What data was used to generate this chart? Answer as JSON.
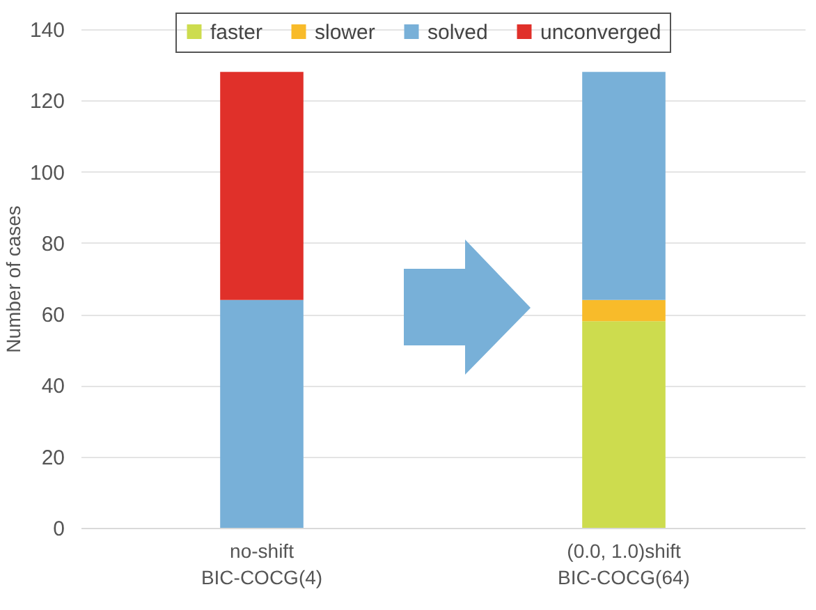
{
  "chart_data": {
    "type": "bar",
    "stacked": true,
    "ylabel": "Number of cases",
    "categories": [
      "no-shift\nBIC-COCG(4)",
      "(0.0, 1.0)shift\nBIC-COCG(64)"
    ],
    "series": [
      {
        "name": "faster",
        "color": "#cddc4e",
        "values": [
          null,
          58
        ]
      },
      {
        "name": "slower",
        "color": "#f8bb2a",
        "values": [
          null,
          6
        ]
      },
      {
        "name": "solved",
        "color": "#78b0d8",
        "values": [
          64,
          64
        ]
      },
      {
        "name": "unconverged",
        "color": "#e0302a",
        "values": [
          64,
          null
        ]
      }
    ],
    "ylim": [
      0,
      140
    ],
    "yticks": [
      0,
      20,
      40,
      60,
      80,
      100,
      120,
      140
    ],
    "grid": "y",
    "legend": "top"
  }
}
